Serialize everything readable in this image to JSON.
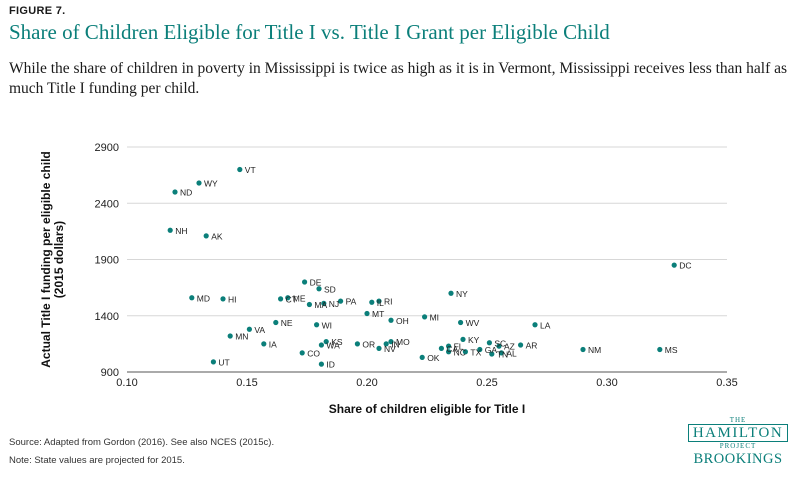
{
  "figure_label": "FIGURE 7.",
  "title": "Share of Children Eligible for Title I vs. Title I Grant per Eligible Child",
  "subtitle": "While the share of children in poverty in Mississippi is twice as high as it is in Vermont, Mississippi receives less than half as much Title I funding per child.",
  "source": "Source: Adapted from Gordon (2016). See also NCES (2015c).",
  "note": "Note: State values are projected for 2015.",
  "logo": {
    "the": "THE",
    "hamilton": "HAMILTON",
    "project": "PROJECT",
    "brookings": "BROOKINGS"
  },
  "colors": {
    "accent": "#0b7f7a",
    "point": "#0b7f7a",
    "grid": "#d7d7d7",
    "text": "#1a1a1a"
  },
  "chart_data": {
    "type": "scatter",
    "xlabel": "Share of children eligible for Title I",
    "ylabel": "Actual Title I funding per eligible child (2015 dollars)",
    "ylabel_lines": [
      "Actual Title I funding per eligible child",
      "(2015 dollars)"
    ],
    "xlim": [
      0.1,
      0.35
    ],
    "ylim": [
      900,
      2900
    ],
    "xticks": [
      "0.10",
      "0.15",
      "0.20",
      "0.25",
      "0.30",
      "0.35"
    ],
    "yticks": [
      "900",
      "1400",
      "1900",
      "2400",
      "2900"
    ],
    "grid": "horizontal",
    "points": [
      {
        "label": "VT",
        "x": 0.147,
        "y": 2700
      },
      {
        "label": "WY",
        "x": 0.13,
        "y": 2580
      },
      {
        "label": "ND",
        "x": 0.12,
        "y": 2500
      },
      {
        "label": "NH",
        "x": 0.118,
        "y": 2160
      },
      {
        "label": "AK",
        "x": 0.133,
        "y": 2110
      },
      {
        "label": "DC",
        "x": 0.328,
        "y": 1850
      },
      {
        "label": "DE",
        "x": 0.174,
        "y": 1700
      },
      {
        "label": "SD",
        "x": 0.18,
        "y": 1640
      },
      {
        "label": "NY",
        "x": 0.235,
        "y": 1600
      },
      {
        "label": "MD",
        "x": 0.127,
        "y": 1560
      },
      {
        "label": "HI",
        "x": 0.14,
        "y": 1550
      },
      {
        "label": "CT",
        "x": 0.164,
        "y": 1550
      },
      {
        "label": "ME",
        "x": 0.167,
        "y": 1560
      },
      {
        "label": "MA",
        "x": 0.176,
        "y": 1500
      },
      {
        "label": "NJ",
        "x": 0.182,
        "y": 1510
      },
      {
        "label": "PA",
        "x": 0.189,
        "y": 1530
      },
      {
        "label": "IL",
        "x": 0.202,
        "y": 1520
      },
      {
        "label": "RI",
        "x": 0.205,
        "y": 1530
      },
      {
        "label": "MT",
        "x": 0.2,
        "y": 1420
      },
      {
        "label": "MI",
        "x": 0.224,
        "y": 1390
      },
      {
        "label": "OH",
        "x": 0.21,
        "y": 1360
      },
      {
        "label": "WV",
        "x": 0.239,
        "y": 1340
      },
      {
        "label": "LA",
        "x": 0.27,
        "y": 1320
      },
      {
        "label": "NE",
        "x": 0.162,
        "y": 1340
      },
      {
        "label": "WI",
        "x": 0.179,
        "y": 1320
      },
      {
        "label": "VA",
        "x": 0.151,
        "y": 1280
      },
      {
        "label": "MN",
        "x": 0.143,
        "y": 1220
      },
      {
        "label": "IA",
        "x": 0.157,
        "y": 1150
      },
      {
        "label": "WA",
        "x": 0.181,
        "y": 1140
      },
      {
        "label": "KS",
        "x": 0.183,
        "y": 1170
      },
      {
        "label": "OR",
        "x": 0.196,
        "y": 1150
      },
      {
        "label": "MO",
        "x": 0.21,
        "y": 1170
      },
      {
        "label": "IN",
        "x": 0.208,
        "y": 1150
      },
      {
        "label": "NV",
        "x": 0.205,
        "y": 1110
      },
      {
        "label": "KY",
        "x": 0.24,
        "y": 1190
      },
      {
        "label": "FL",
        "x": 0.234,
        "y": 1130
      },
      {
        "label": "CA",
        "x": 0.231,
        "y": 1110
      },
      {
        "label": "SC",
        "x": 0.251,
        "y": 1160
      },
      {
        "label": "AZ",
        "x": 0.255,
        "y": 1130
      },
      {
        "label": "AR",
        "x": 0.264,
        "y": 1140
      },
      {
        "label": "NC",
        "x": 0.234,
        "y": 1080
      },
      {
        "label": "TX",
        "x": 0.241,
        "y": 1080
      },
      {
        "label": "GA",
        "x": 0.247,
        "y": 1100
      },
      {
        "label": "AL",
        "x": 0.256,
        "y": 1070
      },
      {
        "label": "TN",
        "x": 0.252,
        "y": 1060
      },
      {
        "label": "OK",
        "x": 0.223,
        "y": 1030
      },
      {
        "label": "CO",
        "x": 0.173,
        "y": 1070
      },
      {
        "label": "ID",
        "x": 0.181,
        "y": 970
      },
      {
        "label": "UT",
        "x": 0.136,
        "y": 990
      },
      {
        "label": "NM",
        "x": 0.29,
        "y": 1100
      },
      {
        "label": "MS",
        "x": 0.322,
        "y": 1100
      }
    ]
  }
}
